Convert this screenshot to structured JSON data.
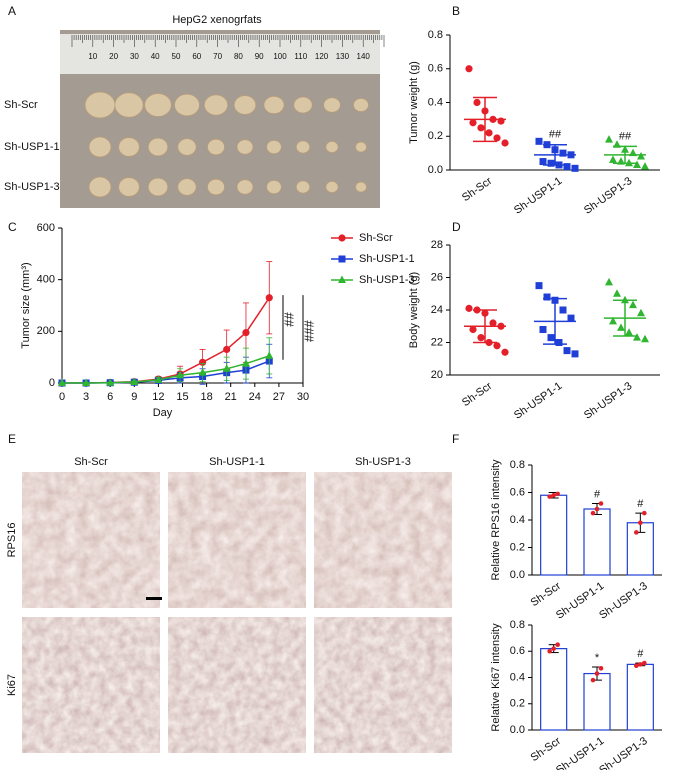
{
  "panel_labels": [
    "A",
    "B",
    "C",
    "D",
    "E",
    "F"
  ],
  "xenograft_photo": {
    "title": "HepG2 xenogrfats",
    "row_labels": [
      "Sh-Scr",
      "Sh-USP1-1",
      "Sh-USP1-3"
    ],
    "ruler_labels": [
      "10",
      "20",
      "30",
      "40",
      "50",
      "60",
      "70",
      "80",
      "90",
      "100",
      "110",
      "120",
      "130",
      "140"
    ]
  },
  "ihc_images": {
    "column_labels": [
      "Sh-Scr",
      "Sh-USP1-1",
      "Sh-USP1-3"
    ],
    "row_labels": [
      "RPS16",
      "Ki67"
    ]
  },
  "chart_data": [
    {
      "type": "dotplot",
      "y_label": "Tumor weight (g)",
      "categories": [
        "Sh-Scr",
        "Sh-USP1-1",
        "Sh-USP1-3"
      ],
      "markers": [
        "circle",
        "square",
        "triangle"
      ],
      "groups": [
        {
          "color": "#e3202a",
          "values": [
            0.6,
            0.4,
            0.35,
            0.3,
            0.29,
            0.28,
            0.25,
            0.22,
            0.19,
            0.16
          ],
          "mean": 0.3,
          "sd": 0.13
        },
        {
          "color": "#1f3fd6",
          "values": [
            0.17,
            0.15,
            0.12,
            0.1,
            0.09,
            0.05,
            0.04,
            0.03,
            0.02,
            0.01
          ],
          "mean": 0.09,
          "sd": 0.06
        },
        {
          "color": "#2fb52f",
          "values": [
            0.18,
            0.15,
            0.12,
            0.1,
            0.08,
            0.06,
            0.05,
            0.04,
            0.03,
            0.02
          ],
          "mean": 0.09,
          "sd": 0.05
        }
      ],
      "annotations": [
        null,
        "##",
        "##"
      ],
      "ylim": [
        0,
        0.8
      ],
      "yticks": [
        {
          "value": 0,
          "label": "0.0"
        },
        0.2,
        0.4,
        0.6,
        0.8
      ]
    },
    {
      "type": "line",
      "x_label": "Day",
      "y_label": "Tumor size (mm³)",
      "x": [
        0,
        3,
        6,
        9,
        12,
        14.7,
        17.5,
        20.5,
        22.9,
        25.8
      ],
      "series": [
        {
          "name": "Sh-Scr",
          "color": "#e3202a",
          "marker": "circle",
          "values": [
            0,
            0,
            2,
            5,
            15,
            35,
            80,
            130,
            195,
            330
          ],
          "errors": [
            0,
            0,
            2,
            5,
            10,
            30,
            50,
            75,
            115,
            140
          ]
        },
        {
          "name": "Sh-USP1-1",
          "color": "#1f3fd6",
          "marker": "square",
          "values": [
            0,
            0,
            1,
            3,
            10,
            20,
            25,
            40,
            50,
            85
          ],
          "errors": [
            0,
            0,
            1,
            4,
            8,
            20,
            30,
            40,
            50,
            65
          ]
        },
        {
          "name": "Sh-USP1-3",
          "color": "#2fb52f",
          "marker": "triangle",
          "values": [
            0,
            0,
            1,
            4,
            12,
            30,
            40,
            55,
            75,
            105
          ],
          "errors": [
            0,
            0,
            1,
            4,
            10,
            25,
            35,
            45,
            60,
            70
          ]
        }
      ],
      "annotations": [
        "##",
        "###"
      ],
      "legend": "upper right",
      "xlim": [
        0,
        30
      ],
      "xticks": [
        0,
        3,
        6,
        9,
        12,
        15,
        18,
        21,
        24,
        27,
        30
      ],
      "ylim": [
        0,
        600
      ],
      "yticks": [
        0,
        200,
        400,
        600
      ]
    },
    {
      "type": "dotplot",
      "y_label": "Body weight (g)",
      "categories": [
        "Sh-Scr",
        "Sh-USP1-1",
        "Sh-USP1-3"
      ],
      "markers": [
        "circle",
        "square",
        "triangle"
      ],
      "groups": [
        {
          "color": "#e3202a",
          "values": [
            24.1,
            24.0,
            23.8,
            23.2,
            23.0,
            22.8,
            22.3,
            22.0,
            21.8,
            21.4
          ],
          "mean": 23.0,
          "sd": 1.0
        },
        {
          "color": "#1f3fd6",
          "values": [
            25.5,
            24.8,
            24.6,
            24.0,
            23.5,
            22.8,
            22.3,
            22.0,
            21.5,
            21.3
          ],
          "mean": 23.3,
          "sd": 1.4
        },
        {
          "color": "#2fb52f",
          "values": [
            25.7,
            25.0,
            24.6,
            24.3,
            23.8,
            23.3,
            22.9,
            22.6,
            22.3,
            22.2
          ],
          "mean": 23.5,
          "sd": 1.1
        }
      ],
      "ylim": [
        20,
        28
      ],
      "yticks": [
        20,
        22,
        24,
        26,
        28
      ]
    },
    {
      "type": "bar",
      "y_label": "Relative RPS16 intensity",
      "categories": [
        "Sh-Scr",
        "Sh-USP1-1",
        "Sh-USP1-3"
      ],
      "color": "#1f3fd6",
      "point_color": "#e3202a",
      "values": [
        0.58,
        0.48,
        0.38
      ],
      "errors": [
        0.02,
        0.04,
        0.07
      ],
      "points": [
        [
          0.57,
          0.58,
          0.59
        ],
        [
          0.45,
          0.48,
          0.52
        ],
        [
          0.31,
          0.38,
          0.45
        ]
      ],
      "annotations": [
        null,
        "#",
        "#"
      ],
      "ylim": [
        0,
        0.8
      ],
      "yticks": [
        {
          "value": 0,
          "label": "0.0"
        },
        0.2,
        0.4,
        0.6,
        0.8
      ]
    },
    {
      "type": "bar",
      "y_label": "Relative Ki67 intensity",
      "categories": [
        "Sh-Scr",
        "Sh-USP1-1",
        "Sh-USP1-3"
      ],
      "color": "#1f3fd6",
      "point_color": "#e3202a",
      "values": [
        0.62,
        0.43,
        0.5
      ],
      "errors": [
        0.03,
        0.05,
        0.01
      ],
      "points": [
        [
          0.6,
          0.62,
          0.65
        ],
        [
          0.38,
          0.43,
          0.47
        ],
        [
          0.49,
          0.5,
          0.51
        ]
      ],
      "annotations": [
        null,
        "*",
        "#"
      ],
      "ylim": [
        0,
        0.8
      ],
      "yticks": [
        {
          "value": 0,
          "label": "0.0"
        },
        0.2,
        0.4,
        0.6,
        0.8
      ]
    }
  ]
}
